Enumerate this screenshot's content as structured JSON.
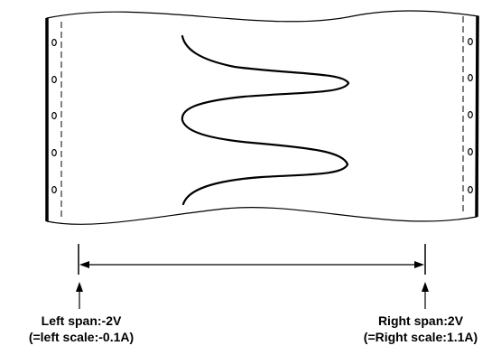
{
  "left_marker": {
    "line1": "Left span:-2V",
    "line2": "(=left scale:-0.1A)"
  },
  "right_marker": {
    "line1": "Right span:2V",
    "line2": "(=Right scale:1.1A)"
  }
}
